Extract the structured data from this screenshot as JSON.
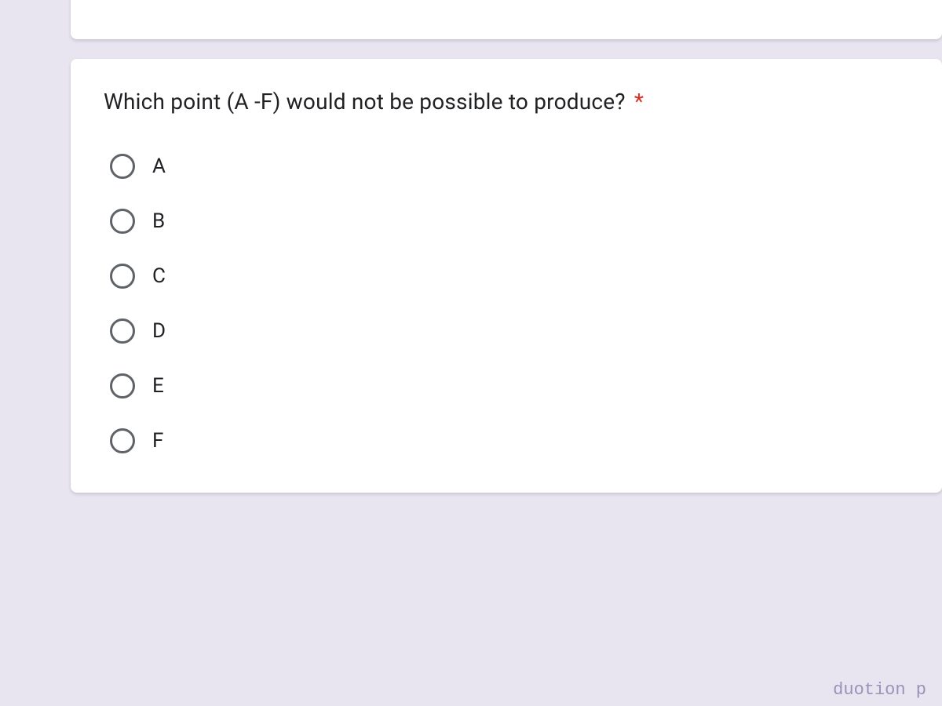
{
  "question": {
    "text": "Which point (A -F) would not be possible to produce?",
    "required": true,
    "asterisk": "*"
  },
  "options": [
    {
      "label": "A"
    },
    {
      "label": "B"
    },
    {
      "label": "C"
    },
    {
      "label": "D"
    },
    {
      "label": "E"
    },
    {
      "label": "F"
    }
  ],
  "colors": {
    "page_background": "#e8e5f0",
    "card_background": "#ffffff",
    "text_primary": "#202124",
    "radio_border": "#5f6368",
    "required_color": "#d93025"
  },
  "typography": {
    "question_fontsize": 28,
    "option_fontsize": 26,
    "font_family": "Roboto, Arial, sans-serif"
  },
  "fragment_text": "duotion p"
}
